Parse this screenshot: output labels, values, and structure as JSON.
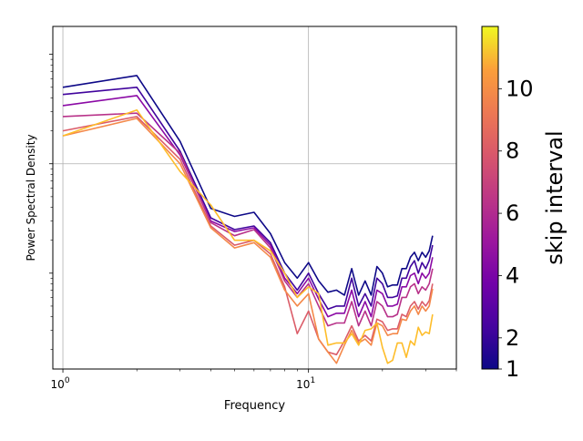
{
  "chart_data": {
    "type": "line",
    "xscale": "log",
    "yscale": "log",
    "title": "",
    "xlabel": "Frequency",
    "ylabel": "Power Spectral Density",
    "xlim": [
      0.91,
      40
    ],
    "ylim": [
      0.0133,
      18
    ],
    "x_major_ticks": [
      {
        "value": 1,
        "base": "10",
        "exp": "0"
      },
      {
        "value": 10,
        "base": "10",
        "exp": "1"
      }
    ],
    "grid": true,
    "colorbar": {
      "label": "skip interval",
      "cmap": "plasma",
      "range": [
        1,
        12
      ],
      "ticks": [
        "1",
        "2",
        "4",
        "6",
        "8",
        "10"
      ]
    },
    "x": [
      1,
      2,
      3,
      4,
      5,
      6,
      7,
      8,
      9,
      10,
      11,
      12,
      13,
      14,
      15,
      16,
      17,
      18,
      19,
      20,
      21,
      22,
      23,
      24,
      25,
      26,
      27,
      28,
      29,
      30,
      31,
      32
    ],
    "series": [
      {
        "name": "skip 1",
        "color": "#0d0887",
        "values": [
          5.0,
          6.4,
          1.6,
          0.39,
          0.33,
          0.36,
          0.23,
          0.125,
          0.09,
          0.125,
          0.085,
          0.067,
          0.07,
          0.063,
          0.11,
          0.063,
          0.085,
          0.063,
          0.115,
          0.1,
          0.075,
          0.078,
          0.078,
          0.11,
          0.11,
          0.14,
          0.155,
          0.13,
          0.155,
          0.14,
          0.16,
          0.22
        ]
      },
      {
        "name": "skip 2",
        "color": "#41049d",
        "values": [
          4.3,
          5.0,
          1.3,
          0.32,
          0.25,
          0.27,
          0.19,
          0.1,
          0.07,
          0.1,
          0.065,
          0.047,
          0.05,
          0.05,
          0.09,
          0.05,
          0.065,
          0.05,
          0.09,
          0.08,
          0.06,
          0.06,
          0.062,
          0.09,
          0.09,
          0.115,
          0.13,
          0.1,
          0.125,
          0.11,
          0.13,
          0.18
        ]
      },
      {
        "name": "skip 4",
        "color": "#8b0aa5",
        "values": [
          3.4,
          4.2,
          1.2,
          0.3,
          0.24,
          0.26,
          0.18,
          0.09,
          0.065,
          0.09,
          0.058,
          0.04,
          0.043,
          0.043,
          0.07,
          0.04,
          0.055,
          0.04,
          0.07,
          0.065,
          0.05,
          0.05,
          0.052,
          0.075,
          0.075,
          0.095,
          0.1,
          0.08,
          0.1,
          0.09,
          0.1,
          0.14
        ]
      },
      {
        "name": "skip 6",
        "color": "#b83289",
        "values": [
          2.7,
          2.9,
          1.25,
          0.29,
          0.22,
          0.25,
          0.17,
          0.085,
          0.06,
          0.08,
          0.05,
          0.033,
          0.035,
          0.035,
          0.055,
          0.033,
          0.045,
          0.033,
          0.055,
          0.05,
          0.04,
          0.04,
          0.042,
          0.06,
          0.06,
          0.075,
          0.08,
          0.065,
          0.075,
          0.07,
          0.08,
          0.11
        ]
      },
      {
        "name": "skip 8",
        "color": "#db5c68",
        "values": [
          2.0,
          2.7,
          1.1,
          0.27,
          0.18,
          0.2,
          0.15,
          0.075,
          0.028,
          0.045,
          0.025,
          0.019,
          0.018,
          0.024,
          0.033,
          0.024,
          0.027,
          0.024,
          0.038,
          0.036,
          0.03,
          0.031,
          0.031,
          0.042,
          0.04,
          0.05,
          0.055,
          0.047,
          0.055,
          0.05,
          0.056,
          0.08
        ]
      },
      {
        "name": "skip 10",
        "color": "#f48849",
        "values": [
          1.8,
          2.6,
          1.0,
          0.26,
          0.17,
          0.19,
          0.14,
          0.07,
          0.05,
          0.065,
          0.025,
          0.019,
          0.015,
          0.022,
          0.03,
          0.023,
          0.025,
          0.022,
          0.035,
          0.033,
          0.027,
          0.028,
          0.028,
          0.038,
          0.037,
          0.045,
          0.05,
          0.042,
          0.05,
          0.045,
          0.05,
          0.072
        ]
      },
      {
        "name": "skip 12",
        "color": "#febd2a",
        "values": [
          1.8,
          3.1,
          0.85,
          0.42,
          0.2,
          0.2,
          0.16,
          0.1,
          0.06,
          0.075,
          0.065,
          0.022,
          0.023,
          0.023,
          0.028,
          0.022,
          0.03,
          0.031,
          0.035,
          0.021,
          0.015,
          0.016,
          0.023,
          0.023,
          0.017,
          0.024,
          0.022,
          0.032,
          0.027,
          0.029,
          0.028,
          0.042
        ]
      }
    ]
  }
}
